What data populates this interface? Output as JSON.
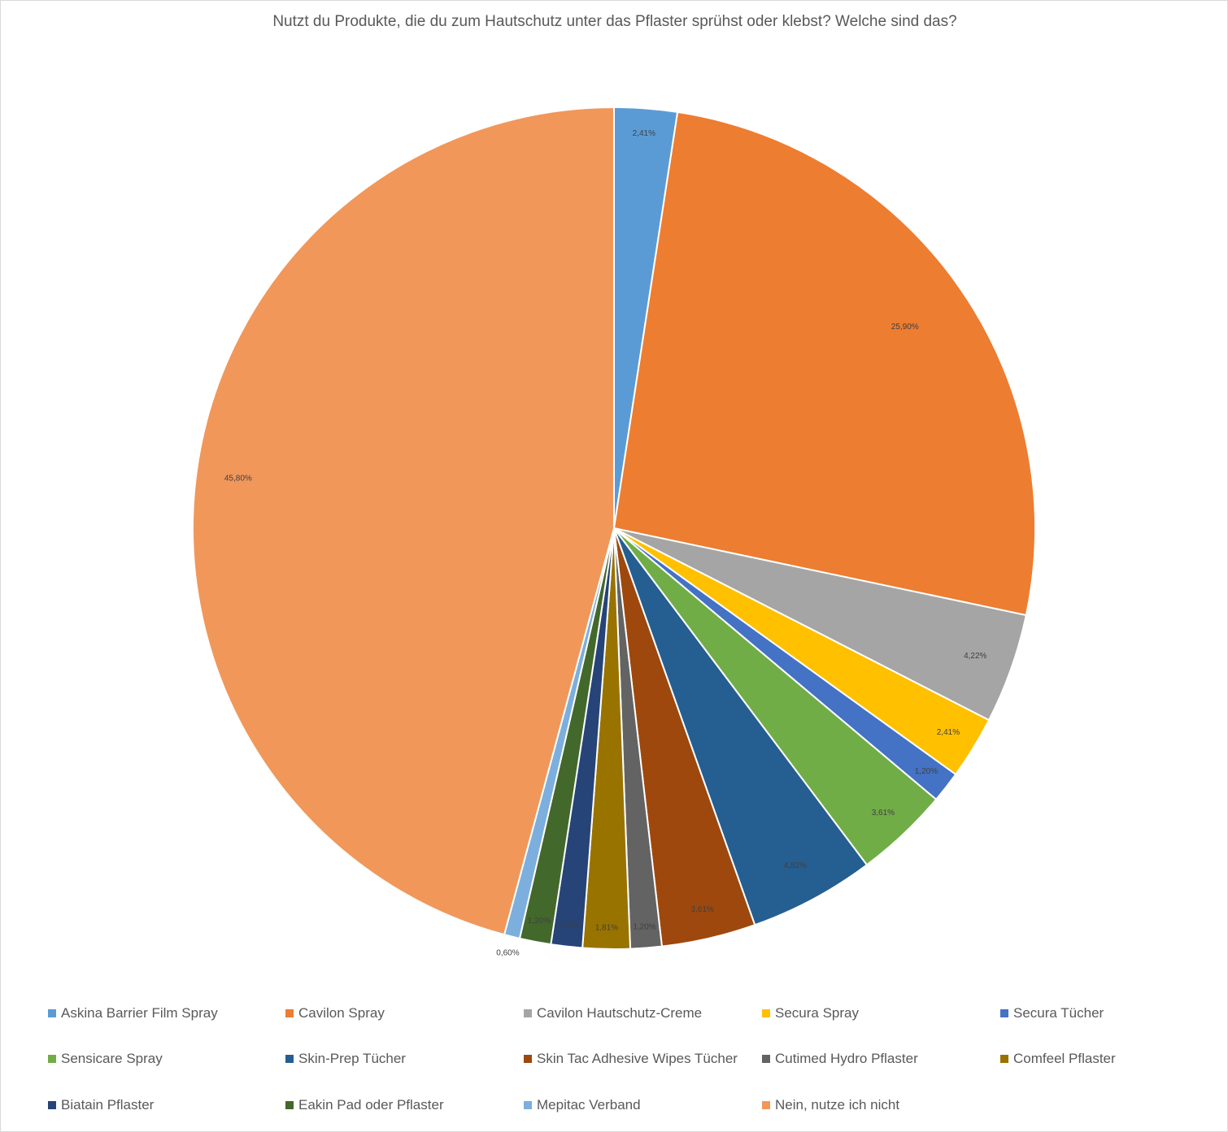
{
  "chart_data": {
    "type": "pie",
    "title": "Nutzt du Produkte, die du zum Hautschutz unter das Pflaster sprühst oder klebst? Welche sind das?",
    "legend_position": "bottom",
    "slices": [
      {
        "name": "Askina Barrier Film Spray",
        "value": 2.41,
        "label": "2,41%",
        "color": "#5B9BD5"
      },
      {
        "name": "Cavilon Spray",
        "value": 25.9,
        "label": "25,90%",
        "color": "#ED7D31"
      },
      {
        "name": "Cavilon Hautschutz-Creme",
        "value": 4.22,
        "label": "4,22%",
        "color": "#A5A5A5"
      },
      {
        "name": "Secura Spray",
        "value": 2.41,
        "label": "2,41%",
        "color": "#FFC000"
      },
      {
        "name": "Secura Tücher",
        "value": 1.2,
        "label": "1,20%",
        "color": "#4472C4"
      },
      {
        "name": "Sensicare Spray",
        "value": 3.61,
        "label": "3,61%",
        "color": "#70AD47"
      },
      {
        "name": "Skin-Prep Tücher",
        "value": 4.82,
        "label": "4,82%",
        "color": "#255E91"
      },
      {
        "name": "Skin Tac Adhesive Wipes Tücher",
        "value": 3.61,
        "label": "3,61%",
        "color": "#9E480E"
      },
      {
        "name": "Cutimed Hydro Pflaster",
        "value": 1.2,
        "label": "1,20%",
        "color": "#636363"
      },
      {
        "name": "Comfeel Pflaster",
        "value": 1.81,
        "label": "1,81%",
        "color": "#997300"
      },
      {
        "name": "Biatain Pflaster",
        "value": 1.2,
        "label": "1,20%",
        "color": "#264478"
      },
      {
        "name": "Eakin Pad oder Pflaster",
        "value": 1.2,
        "label": "1,20%",
        "color": "#43682B"
      },
      {
        "name": "Mepitac Verband",
        "value": 0.6,
        "label": "0,60%",
        "color": "#7CAFDD"
      },
      {
        "name": "Nein, nutze ich nicht",
        "value": 45.8,
        "label": "45,80%",
        "color": "#F1975A"
      }
    ]
  }
}
